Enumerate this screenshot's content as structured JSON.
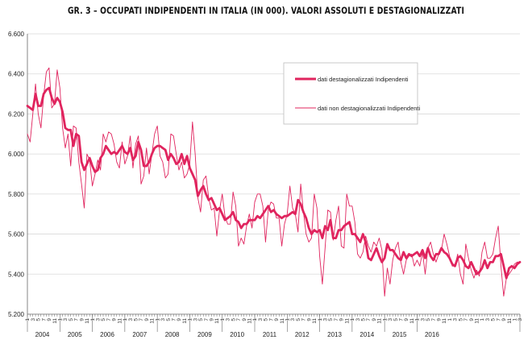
{
  "title": "GR. 3 – OCCUPATI INDIPENDENTI IN ITALIA (IN 000). VALORI ASSOLUTI E DESTAGIONALIZZATI",
  "colors": {
    "line": "#e0245e",
    "grid": "#d9d9d9",
    "axis": "#666666"
  },
  "chart_data": {
    "type": "line",
    "title": "GR. 3 – OCCUPATI INDIPENDENTI IN ITALIA (IN 000). VALORI ASSOLUTI E DESTAGIONALIZZATI",
    "xlabel": "",
    "ylabel": "",
    "ylim": [
      5200,
      6600
    ],
    "yticks": [
      5200,
      5400,
      5600,
      5800,
      6000,
      6200,
      6400,
      6600
    ],
    "ytick_labels": [
      "5.200",
      "5.400",
      "5.600",
      "5.800",
      "6.000",
      "6.200",
      "6.400",
      "6.600"
    ],
    "grid": true,
    "legend_position": "top-right",
    "x_unit": "month",
    "years": [
      "2004",
      "2005",
      "2006",
      "2007",
      "2008",
      "2009",
      "2010",
      "2011",
      "2012",
      "2013",
      "2014",
      "2015",
      "2016"
    ],
    "month_tick_labels": [
      "1",
      "3",
      "5",
      "7",
      "9",
      "11"
    ],
    "series": [
      {
        "name": "dati destagionalizzati Indipendenti",
        "style": "thick",
        "values": [
          6240,
          6230,
          6220,
          6300,
          6240,
          6240,
          6300,
          6320,
          6330,
          6280,
          6250,
          6280,
          6260,
          6210,
          6130,
          6120,
          6120,
          6040,
          6100,
          6090,
          5960,
          5920,
          5950,
          5980,
          5940,
          5910,
          5920,
          5980,
          6000,
          6040,
          6020,
          6000,
          6010,
          6000,
          6020,
          6040,
          6010,
          6000,
          6030,
          5970,
          5990,
          6060,
          6020,
          5940,
          5940,
          5960,
          6000,
          6030,
          6040,
          6040,
          6030,
          6020,
          5970,
          6000,
          5980,
          5950,
          5960,
          6000,
          5950,
          5990,
          5930,
          5900,
          5870,
          5790,
          5820,
          5840,
          5800,
          5770,
          5780,
          5750,
          5720,
          5730,
          5700,
          5670,
          5680,
          5690,
          5710,
          5670,
          5660,
          5630,
          5650,
          5650,
          5670,
          5670,
          5670,
          5690,
          5680,
          5700,
          5720,
          5740,
          5710,
          5720,
          5700,
          5690,
          5680,
          5690,
          5690,
          5700,
          5710,
          5700,
          5770,
          5750,
          5710,
          5680,
          5630,
          5600,
          5620,
          5610,
          5620,
          5580,
          5640,
          5620,
          5670,
          5580,
          5580,
          5620,
          5620,
          5640,
          5650,
          5660,
          5600,
          5600,
          5580,
          5560,
          5600,
          5560,
          5480,
          5470,
          5500,
          5530,
          5490,
          5460,
          5480,
          5550,
          5520,
          5520,
          5500,
          5480,
          5470,
          5510,
          5480,
          5500,
          5490,
          5500,
          5510,
          5490,
          5520,
          5480,
          5530,
          5490,
          5470,
          5500,
          5500,
          5530,
          5510,
          5500,
          5480,
          5450,
          5440,
          5480,
          5490,
          5470,
          5440,
          5430,
          5460,
          5430,
          5400,
          5410,
          5430,
          5470,
          5430,
          5460,
          5460,
          5490,
          5490,
          5500,
          5440,
          5380,
          5430,
          5440,
          5430,
          5450,
          5460
        ]
      },
      {
        "name": "dati non destagionalizzati Indipendenti",
        "style": "thin",
        "values": [
          6100,
          6060,
          6200,
          6350,
          6200,
          6130,
          6290,
          6410,
          6430,
          6230,
          6250,
          6420,
          6330,
          6130,
          6030,
          6100,
          5940,
          6140,
          6130,
          5960,
          5850,
          5730,
          6000,
          5970,
          5840,
          5900,
          5970,
          5920,
          6100,
          6060,
          6110,
          6100,
          6050,
          5960,
          5930,
          6060,
          5950,
          5990,
          6090,
          5930,
          6050,
          6090,
          5850,
          5890,
          6030,
          5900,
          6000,
          6100,
          6140,
          5990,
          5960,
          5880,
          5900,
          6100,
          6090,
          6000,
          5920,
          5960,
          5880,
          5900,
          5950,
          6160,
          6000,
          5780,
          5710,
          5870,
          5890,
          5780,
          5720,
          5730,
          5590,
          5720,
          5800,
          5690,
          5650,
          5650,
          5810,
          5740,
          5540,
          5580,
          5550,
          5640,
          5700,
          5630,
          5760,
          5800,
          5800,
          5740,
          5560,
          5720,
          5760,
          5750,
          5680,
          5680,
          5540,
          5650,
          5700,
          5840,
          5730,
          5700,
          5610,
          5850,
          5710,
          5600,
          5560,
          5580,
          5800,
          5730,
          5490,
          5350,
          5530,
          5720,
          5710,
          5570,
          5670,
          5740,
          5540,
          5530,
          5800,
          5740,
          5740,
          5660,
          5500,
          5480,
          5510,
          5590,
          5540,
          5510,
          5560,
          5540,
          5580,
          5520,
          5290,
          5430,
          5350,
          5470,
          5530,
          5560,
          5460,
          5400,
          5470,
          5490,
          5500,
          5440,
          5470,
          5440,
          5510,
          5400,
          5530,
          5560,
          5500,
          5460,
          5500,
          5520,
          5600,
          5550,
          5490,
          5440,
          5440,
          5500,
          5400,
          5350,
          5550,
          5480,
          5420,
          5380,
          5420,
          5390,
          5510,
          5560,
          5480,
          5480,
          5500,
          5580,
          5640,
          5440,
          5290,
          5380,
          5400,
          5420,
          5450,
          5460,
          5460
        ]
      }
    ]
  }
}
